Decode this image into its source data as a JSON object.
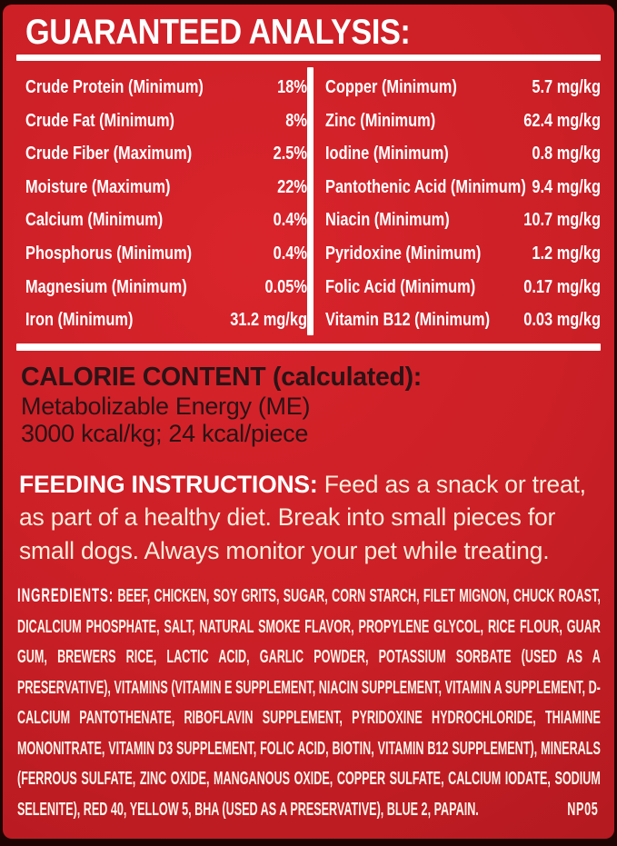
{
  "colors": {
    "background_red": "#cb1f26",
    "edge_dark": "#2b0506",
    "text_white": "#ffffff",
    "text_cream": "#f7edda",
    "text_dark": "#2b1316"
  },
  "guaranteed_analysis": {
    "title": "GUARANTEED ANALYSIS:",
    "left_rows": [
      {
        "label": "Crude Protein (Minimum)",
        "value": "18%"
      },
      {
        "label": "Crude Fat (Minimum)",
        "value": "8%"
      },
      {
        "label": "Crude Fiber (Maximum)",
        "value": "2.5%"
      },
      {
        "label": "Moisture (Maximum)",
        "value": "22%"
      },
      {
        "label": "Calcium (Minimum)",
        "value": "0.4%"
      },
      {
        "label": "Phosphorus (Minimum)",
        "value": "0.4%"
      },
      {
        "label": "Magnesium (Minimum)",
        "value": "0.05%"
      },
      {
        "label": "Iron (Minimum)",
        "value": "31.2 mg/kg"
      }
    ],
    "right_rows": [
      {
        "label": "Copper (Minimum)",
        "value": "5.7 mg/kg"
      },
      {
        "label": "Zinc (Minimum)",
        "value": "62.4 mg/kg"
      },
      {
        "label": "Iodine (Minimum)",
        "value": "0.8 mg/kg"
      },
      {
        "label": "Pantothenic Acid (Minimum)",
        "value": "9.4 mg/kg"
      },
      {
        "label": "Niacin (Minimum)",
        "value": "10.7 mg/kg"
      },
      {
        "label": "Pyridoxine (Minimum)",
        "value": "1.2 mg/kg"
      },
      {
        "label": "Folic Acid (Minimum)",
        "value": "0.17 mg/kg"
      },
      {
        "label": "Vitamin B12 (Minimum)",
        "value": "0.03 mg/kg"
      }
    ]
  },
  "calorie_content": {
    "title": "CALORIE CONTENT (calculated):",
    "line1": "Metabolizable Energy (ME)",
    "line2": "3000 kcal/kg; 24 kcal/piece"
  },
  "feeding_instructions": {
    "label": "FEEDING INSTRUCTIONS:",
    "text": " Feed as a snack or treat, as part of a healthy diet. Break into small pieces for small dogs. Always monitor your pet while treating."
  },
  "ingredients": {
    "label": "INGREDIENTS:",
    "text": " BEEF, CHICKEN, SOY GRITS, SUGAR, CORN STARCH, FILET MIGNON, CHUCK ROAST, DICALCIUM PHOSPHATE, SALT, NATURAL SMOKE FLAVOR, PROPYLENE GLYCOL, RICE FLOUR, GUAR GUM, BREWERS RICE, LACTIC ACID, GARLIC POWDER, POTASSIUM SORBATE (USED AS A PRESERVATIVE), VITAMINS (VITAMIN E SUPPLEMENT, NIACIN SUPPLEMENT, VITAMIN A SUPPLEMENT, D-CALCIUM PANTOTHENATE, RIBOFLAVIN SUPPLEMENT, PYRIDOXINE HYDROCHLORIDE, THIAMINE MONONITRATE, VITAMIN D3 SUPPLEMENT, FOLIC ACID, BIOTIN, VITAMIN B12 SUPPLEMENT), MINERALS (FERROUS SULFATE, ZINC OXIDE, MANGANOUS OXIDE, COPPER SULFATE, CALCIUM IODATE, SODIUM SELENITE), RED 40, YELLOW 5, BHA (USED AS A PRESERVATIVE), BLUE 2, PAPAIN.",
    "code": "NP05"
  }
}
